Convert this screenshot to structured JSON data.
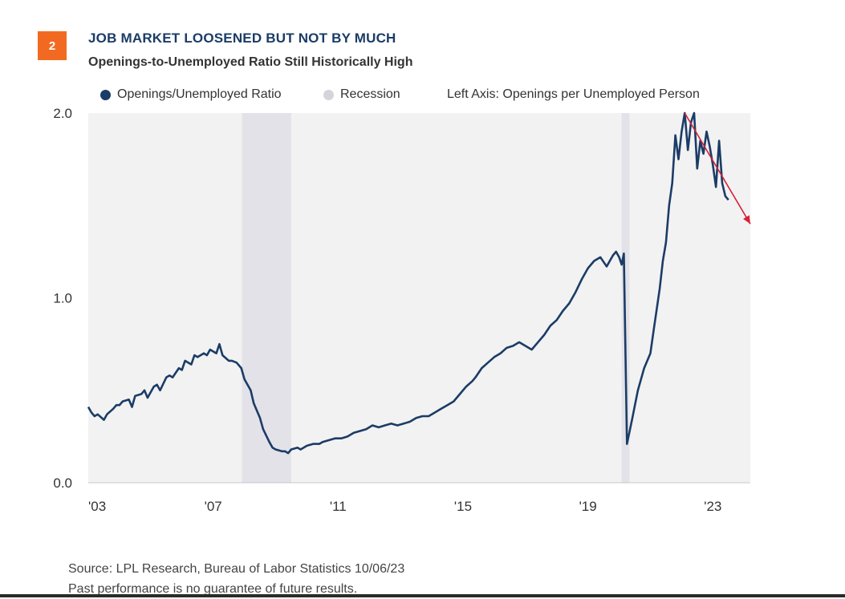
{
  "header": {
    "figure_number": "2",
    "title": "JOB MARKET LOOSENED BUT NOT BY MUCH",
    "subtitle": "Openings-to-Unemployed Ratio Still Historically High"
  },
  "legend": {
    "series_label": "Openings/Unemployed Ratio",
    "recession_label": "Recession",
    "axis_note": "Left Axis: Openings per Unemployed Person"
  },
  "footer": {
    "source": "Source: LPL Research, Bureau of Labor Statistics  10/06/23",
    "disclaimer": "Past performance is no guarantee of future results."
  },
  "colors": {
    "badge": "#f26a21",
    "series": "#1b3c66",
    "recession": "#e2e2e8",
    "plot_bg": "#f2f2f2",
    "trend_arrow": "#d8203a",
    "title": "#1b3c66"
  },
  "chart_data": {
    "type": "line",
    "x_unit": "year",
    "xlim": [
      2003.0,
      2024.2
    ],
    "ylim": [
      0,
      2.0
    ],
    "y_ticks": [
      0,
      1,
      2
    ],
    "y_tick_labels": [
      "0.0",
      "1.0",
      "2.0"
    ],
    "x_ticks": [
      2003,
      2007,
      2011,
      2015,
      2019,
      2023
    ],
    "x_tick_labels": [
      "'03",
      "'07",
      "'11",
      "'15",
      "'19",
      "'23"
    ],
    "recessions": [
      [
        2007.92,
        2009.5
      ],
      [
        2020.08,
        2020.33
      ]
    ],
    "trend_arrow": {
      "start": [
        2022.1,
        2.0
      ],
      "end": [
        2024.2,
        1.4
      ]
    },
    "series": [
      {
        "name": "Openings/Unemployed Ratio",
        "x": [
          2003.0,
          2003.1,
          2003.2,
          2003.3,
          2003.5,
          2003.6,
          2003.8,
          2003.9,
          2004.0,
          2004.1,
          2004.3,
          2004.4,
          2004.5,
          2004.7,
          2004.8,
          2004.9,
          2005.1,
          2005.2,
          2005.3,
          2005.5,
          2005.6,
          2005.7,
          2005.9,
          2006.0,
          2006.1,
          2006.3,
          2006.4,
          2006.5,
          2006.7,
          2006.8,
          2006.9,
          2007.1,
          2007.2,
          2007.3,
          2007.5,
          2007.6,
          2007.75,
          2007.9,
          2008.0,
          2008.2,
          2008.3,
          2008.5,
          2008.6,
          2008.8,
          2008.9,
          2009.0,
          2009.2,
          2009.3,
          2009.4,
          2009.5,
          2009.7,
          2009.8,
          2010.0,
          2010.2,
          2010.4,
          2010.5,
          2010.7,
          2010.9,
          2011.1,
          2011.3,
          2011.5,
          2011.7,
          2011.9,
          2012.1,
          2012.3,
          2012.5,
          2012.7,
          2012.9,
          2013.1,
          2013.3,
          2013.5,
          2013.7,
          2013.9,
          2014.1,
          2014.3,
          2014.5,
          2014.7,
          2014.9,
          2015.1,
          2015.3,
          2015.4,
          2015.6,
          2015.8,
          2016.0,
          2016.2,
          2016.4,
          2016.6,
          2016.8,
          2017.0,
          2017.2,
          2017.4,
          2017.6,
          2017.8,
          2018.0,
          2018.2,
          2018.4,
          2018.6,
          2018.8,
          2019.0,
          2019.2,
          2019.4,
          2019.6,
          2019.8,
          2019.9,
          2020.0,
          2020.08,
          2020.15,
          2020.25,
          2020.4,
          2020.6,
          2020.8,
          2021.0,
          2021.1,
          2021.3,
          2021.4,
          2021.5,
          2021.6,
          2021.7,
          2021.8,
          2021.9,
          2022.0,
          2022.1,
          2022.2,
          2022.3,
          2022.4,
          2022.5,
          2022.6,
          2022.7,
          2022.8,
          2022.9,
          2023.0,
          2023.1,
          2023.2,
          2023.3,
          2023.4,
          2023.5
        ],
        "y": [
          0.41,
          0.38,
          0.36,
          0.37,
          0.34,
          0.37,
          0.4,
          0.42,
          0.42,
          0.44,
          0.45,
          0.41,
          0.47,
          0.48,
          0.5,
          0.46,
          0.52,
          0.53,
          0.5,
          0.57,
          0.58,
          0.57,
          0.62,
          0.61,
          0.66,
          0.64,
          0.69,
          0.68,
          0.7,
          0.69,
          0.72,
          0.7,
          0.75,
          0.69,
          0.66,
          0.66,
          0.65,
          0.62,
          0.56,
          0.5,
          0.43,
          0.35,
          0.29,
          0.22,
          0.19,
          0.18,
          0.17,
          0.17,
          0.16,
          0.18,
          0.19,
          0.18,
          0.2,
          0.21,
          0.21,
          0.22,
          0.23,
          0.24,
          0.24,
          0.25,
          0.27,
          0.28,
          0.29,
          0.31,
          0.3,
          0.31,
          0.32,
          0.31,
          0.32,
          0.33,
          0.35,
          0.36,
          0.36,
          0.38,
          0.4,
          0.42,
          0.44,
          0.48,
          0.52,
          0.55,
          0.57,
          0.62,
          0.65,
          0.68,
          0.7,
          0.73,
          0.74,
          0.76,
          0.74,
          0.72,
          0.76,
          0.8,
          0.85,
          0.88,
          0.93,
          0.97,
          1.03,
          1.1,
          1.16,
          1.2,
          1.22,
          1.17,
          1.23,
          1.25,
          1.22,
          1.18,
          1.24,
          0.21,
          0.33,
          0.5,
          0.62,
          0.7,
          0.82,
          1.05,
          1.2,
          1.3,
          1.5,
          1.62,
          1.88,
          1.75,
          1.9,
          2.0,
          1.8,
          1.95,
          2.0,
          1.7,
          1.85,
          1.78,
          1.9,
          1.82,
          1.72,
          1.6,
          1.85,
          1.62,
          1.55,
          1.53
        ]
      }
    ]
  }
}
